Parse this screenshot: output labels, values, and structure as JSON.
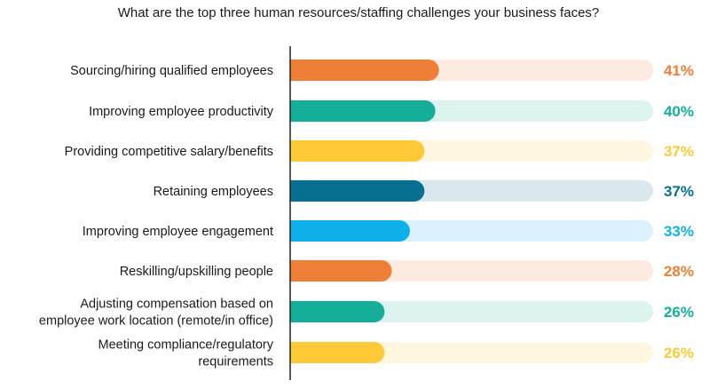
{
  "chart_data": {
    "type": "bar",
    "orientation": "horizontal",
    "title": "What are the top three human resources/staffing challenges your business faces?",
    "xlabel": "",
    "ylabel": "",
    "xlim": [
      0,
      100
    ],
    "grid": false,
    "legend": "none",
    "value_suffix": "%",
    "categories": [
      [
        "Sourcing/hiring qualified employees"
      ],
      [
        "Improving employee productivity"
      ],
      [
        "Providing competitive salary/benefits"
      ],
      [
        "Retaining employees"
      ],
      [
        "Improving employee engagement"
      ],
      [
        "Reskilling/upskilling people"
      ],
      [
        "Adjusting compensation based on",
        "employee work location (remote/in office)"
      ],
      [
        "Meeting compliance/regulatory",
        "requirements"
      ]
    ],
    "values": [
      41,
      40,
      37,
      37,
      33,
      28,
      26,
      26
    ],
    "value_labels": [
      "41%",
      "40%",
      "37%",
      "37%",
      "33%",
      "28%",
      "26%",
      "26%"
    ],
    "colors": [
      "#ef7f36",
      "#14ae99",
      "#fdc937",
      "#076f91",
      "#0eb0ec",
      "#ef7f36",
      "#14ae99",
      "#fdc937"
    ],
    "track_colors": [
      "#fdeae0",
      "#ddf3ef",
      "#fef6df",
      "#dae8ee",
      "#dbf2fc",
      "#fdeae0",
      "#ddf3ef",
      "#fef6df"
    ],
    "axis_color": "#222222"
  }
}
